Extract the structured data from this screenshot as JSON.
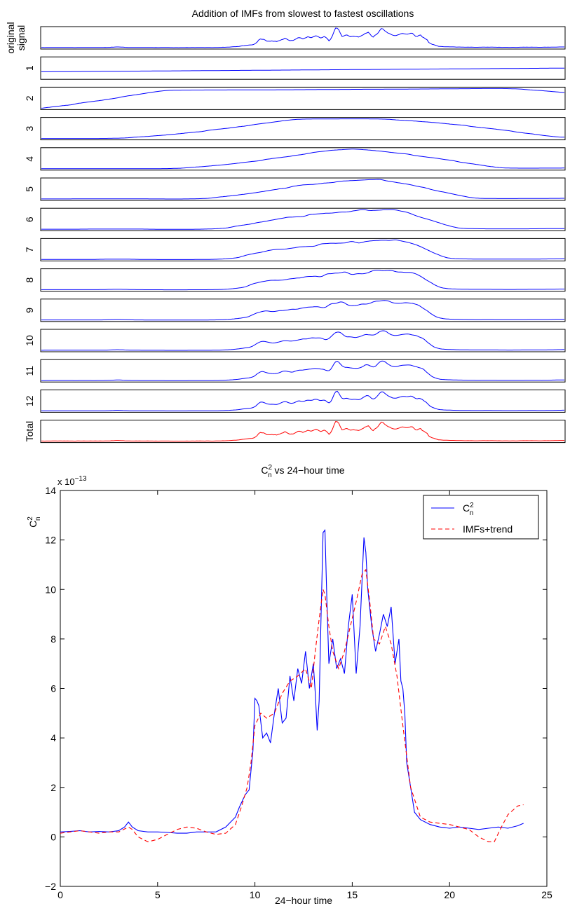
{
  "chart_data": [
    {
      "type": "line",
      "title": "Addition of IMFs from slowest to fastest oscillations",
      "panel_labels": [
        "original\nsignal",
        "1",
        "2",
        "3",
        "4",
        "5",
        "6",
        "7",
        "8",
        "9",
        "10",
        "11",
        "12",
        "Total"
      ],
      "panel_colors": [
        "#0000ff",
        "#0000ff",
        "#0000ff",
        "#0000ff",
        "#0000ff",
        "#0000ff",
        "#0000ff",
        "#0000ff",
        "#0000ff",
        "#0000ff",
        "#0000ff",
        "#0000ff",
        "#0000ff",
        "#ff0000"
      ],
      "x_range": [
        0,
        24
      ],
      "axes_ticks": false
    },
    {
      "type": "line",
      "title": "C_n^2 vs 24−hour time",
      "title_parts": {
        "symbol": "C",
        "sup": "2",
        "sub": "n",
        "rest": " vs 24−hour time"
      },
      "xlabel": "24−hour time",
      "ylabel": "C_n^2",
      "ylabel_parts": {
        "symbol": "C",
        "sup": "2",
        "sub": "n"
      },
      "multiplier": "x 10",
      "multiplier_exponent": "−13",
      "xlim": [
        0,
        25
      ],
      "ylim": [
        -2,
        14
      ],
      "xticks": [
        0,
        5,
        10,
        15,
        20,
        25
      ],
      "ytick_values": [
        -2,
        0,
        2,
        4,
        6,
        8,
        10,
        12,
        14
      ],
      "ytick_labels": [
        "−2",
        "0",
        "2",
        "4",
        "6",
        "8",
        "10",
        "12",
        "14"
      ],
      "legend_position": "top-right",
      "grid": false,
      "series": [
        {
          "name": "C_n^2",
          "legend_parts": {
            "symbol": "C",
            "sup": "2",
            "sub": "n"
          },
          "color": "#0000ff",
          "style": "solid",
          "x": [
            0,
            0.5,
            1,
            1.5,
            2,
            2.5,
            3,
            3.3,
            3.5,
            3.7,
            4,
            4.5,
            5,
            5.5,
            6,
            6.5,
            7,
            7.5,
            8,
            8.5,
            9,
            9.2,
            9.5,
            9.7,
            9.9,
            10.0,
            10.1,
            10.2,
            10.4,
            10.6,
            10.8,
            11.0,
            11.2,
            11.4,
            11.6,
            11.8,
            12.0,
            12.2,
            12.4,
            12.6,
            12.8,
            13.0,
            13.1,
            13.2,
            13.3,
            13.4,
            13.5,
            13.6,
            13.7,
            13.8,
            14.0,
            14.2,
            14.4,
            14.6,
            14.8,
            15.0,
            15.2,
            15.4,
            15.6,
            15.7,
            15.8,
            16.0,
            16.2,
            16.4,
            16.6,
            16.8,
            17.0,
            17.2,
            17.4,
            17.5,
            17.6,
            17.7,
            17.8,
            18.0,
            18.2,
            18.5,
            19.0,
            19.5,
            20.0,
            20.5,
            21.0,
            21.5,
            22.0,
            22.5,
            23.0,
            23.5,
            23.8
          ],
          "y": [
            0.2,
            0.22,
            0.25,
            0.2,
            0.22,
            0.2,
            0.25,
            0.4,
            0.6,
            0.4,
            0.25,
            0.2,
            0.2,
            0.18,
            0.15,
            0.15,
            0.2,
            0.2,
            0.2,
            0.4,
            0.8,
            1.2,
            1.7,
            1.9,
            3.5,
            5.6,
            5.5,
            5.3,
            4.0,
            4.2,
            3.8,
            5.0,
            6.0,
            4.6,
            4.8,
            6.5,
            5.5,
            6.8,
            6.2,
            7.5,
            6.0,
            7.0,
            5.8,
            4.3,
            5.5,
            9.0,
            12.3,
            12.4,
            9.5,
            7.0,
            8.0,
            6.8,
            7.2,
            6.6,
            8.5,
            9.8,
            6.6,
            8.5,
            12.1,
            11.5,
            10.0,
            8.5,
            7.5,
            8.2,
            9.0,
            8.5,
            9.3,
            7.0,
            8.0,
            6.3,
            6.0,
            5.0,
            3.0,
            2.0,
            1.0,
            0.7,
            0.5,
            0.4,
            0.35,
            0.4,
            0.35,
            0.3,
            0.35,
            0.4,
            0.35,
            0.45,
            0.55
          ]
        },
        {
          "name": "IMFs+trend",
          "color": "#ff0000",
          "style": "dashed",
          "x": [
            0,
            0.5,
            1,
            1.5,
            2,
            2.5,
            3,
            3.5,
            3.7,
            4,
            4.5,
            5,
            5.5,
            6,
            6.5,
            7,
            7.5,
            8,
            8.5,
            9,
            9.3,
            9.6,
            9.8,
            10.0,
            10.3,
            10.6,
            11.0,
            11.4,
            11.8,
            12.2,
            12.6,
            12.9,
            13.1,
            13.3,
            13.5,
            13.6,
            13.8,
            14.0,
            14.3,
            14.6,
            14.9,
            15.2,
            15.5,
            15.7,
            15.9,
            16.1,
            16.4,
            16.7,
            17.0,
            17.3,
            17.6,
            18.0,
            18.5,
            19.0,
            19.5,
            20.0,
            20.5,
            21.0,
            21.5,
            22.0,
            22.3,
            22.6,
            23.0,
            23.5,
            23.8
          ],
          "y": [
            0.15,
            0.2,
            0.25,
            0.2,
            0.15,
            0.2,
            0.2,
            0.4,
            0.3,
            0.0,
            -0.2,
            -0.1,
            0.1,
            0.3,
            0.4,
            0.35,
            0.2,
            0.1,
            0.15,
            0.5,
            1.2,
            2.0,
            3.0,
            4.5,
            5.0,
            4.8,
            5.0,
            5.8,
            6.3,
            6.5,
            6.8,
            6.0,
            7.5,
            8.8,
            10.0,
            9.8,
            8.5,
            7.5,
            6.8,
            7.5,
            8.5,
            9.5,
            10.6,
            10.8,
            9.5,
            8.0,
            7.8,
            8.5,
            7.8,
            6.5,
            4.5,
            2.0,
            0.8,
            0.6,
            0.55,
            0.5,
            0.4,
            0.3,
            0.0,
            -0.2,
            -0.2,
            0.3,
            0.9,
            1.25,
            1.3
          ]
        }
      ]
    }
  ]
}
